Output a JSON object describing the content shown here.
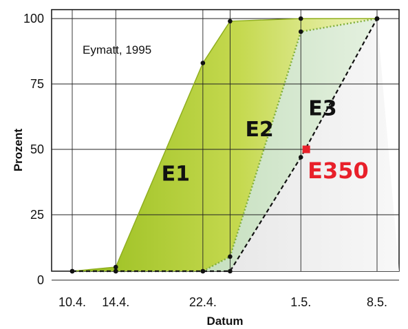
{
  "chart_data": {
    "type": "area",
    "xlabel": "Datum",
    "ylabel": "Prozent",
    "note": "Eymatt, 1995",
    "xlim": [
      0,
      28
    ],
    "ylim": [
      0,
      100
    ],
    "x_ticks": [
      {
        "x": 0,
        "label": "10.4."
      },
      {
        "x": 4,
        "label": "14.4."
      },
      {
        "x": 12,
        "label": "22.4."
      },
      {
        "x": 21,
        "label": "1.5."
      },
      {
        "x": 28,
        "label": "8.5."
      }
    ],
    "x_gridlines": [
      0,
      4,
      12,
      14.5,
      21,
      28
    ],
    "y_ticks": [
      {
        "y": 0,
        "label": "0"
      },
      {
        "y": 25,
        "label": "25"
      },
      {
        "y": 50,
        "label": "50"
      },
      {
        "y": 75,
        "label": "75"
      },
      {
        "y": 100,
        "label": "100"
      }
    ],
    "grid": true,
    "series": [
      {
        "name": "E1",
        "style": "solid",
        "color": "#a9c82a",
        "points": [
          [
            0,
            0
          ],
          [
            4,
            5
          ],
          [
            12,
            83
          ],
          [
            14.5,
            99
          ],
          [
            21,
            100
          ],
          [
            28,
            100
          ]
        ]
      },
      {
        "name": "E2",
        "style": "dotted",
        "color": "#7fae3c",
        "points": [
          [
            0,
            0
          ],
          [
            4,
            0
          ],
          [
            12,
            1
          ],
          [
            14.5,
            9
          ],
          [
            21,
            95
          ],
          [
            28,
            100
          ]
        ]
      },
      {
        "name": "E3",
        "style": "dashed",
        "color": "#111111",
        "points": [
          [
            0,
            0
          ],
          [
            4,
            0
          ],
          [
            12,
            0
          ],
          [
            14.5,
            0
          ],
          [
            21,
            47
          ],
          [
            28,
            100
          ]
        ]
      }
    ],
    "area_labels": [
      {
        "text": "E1",
        "x": 9.5,
        "y": 38
      },
      {
        "text": "E2",
        "x": 17.2,
        "y": 55
      },
      {
        "text": "E3",
        "x": 23,
        "y": 63
      }
    ],
    "marker": {
      "label": "E350",
      "x": 21.5,
      "y": 50,
      "color": "#e8202a"
    }
  }
}
